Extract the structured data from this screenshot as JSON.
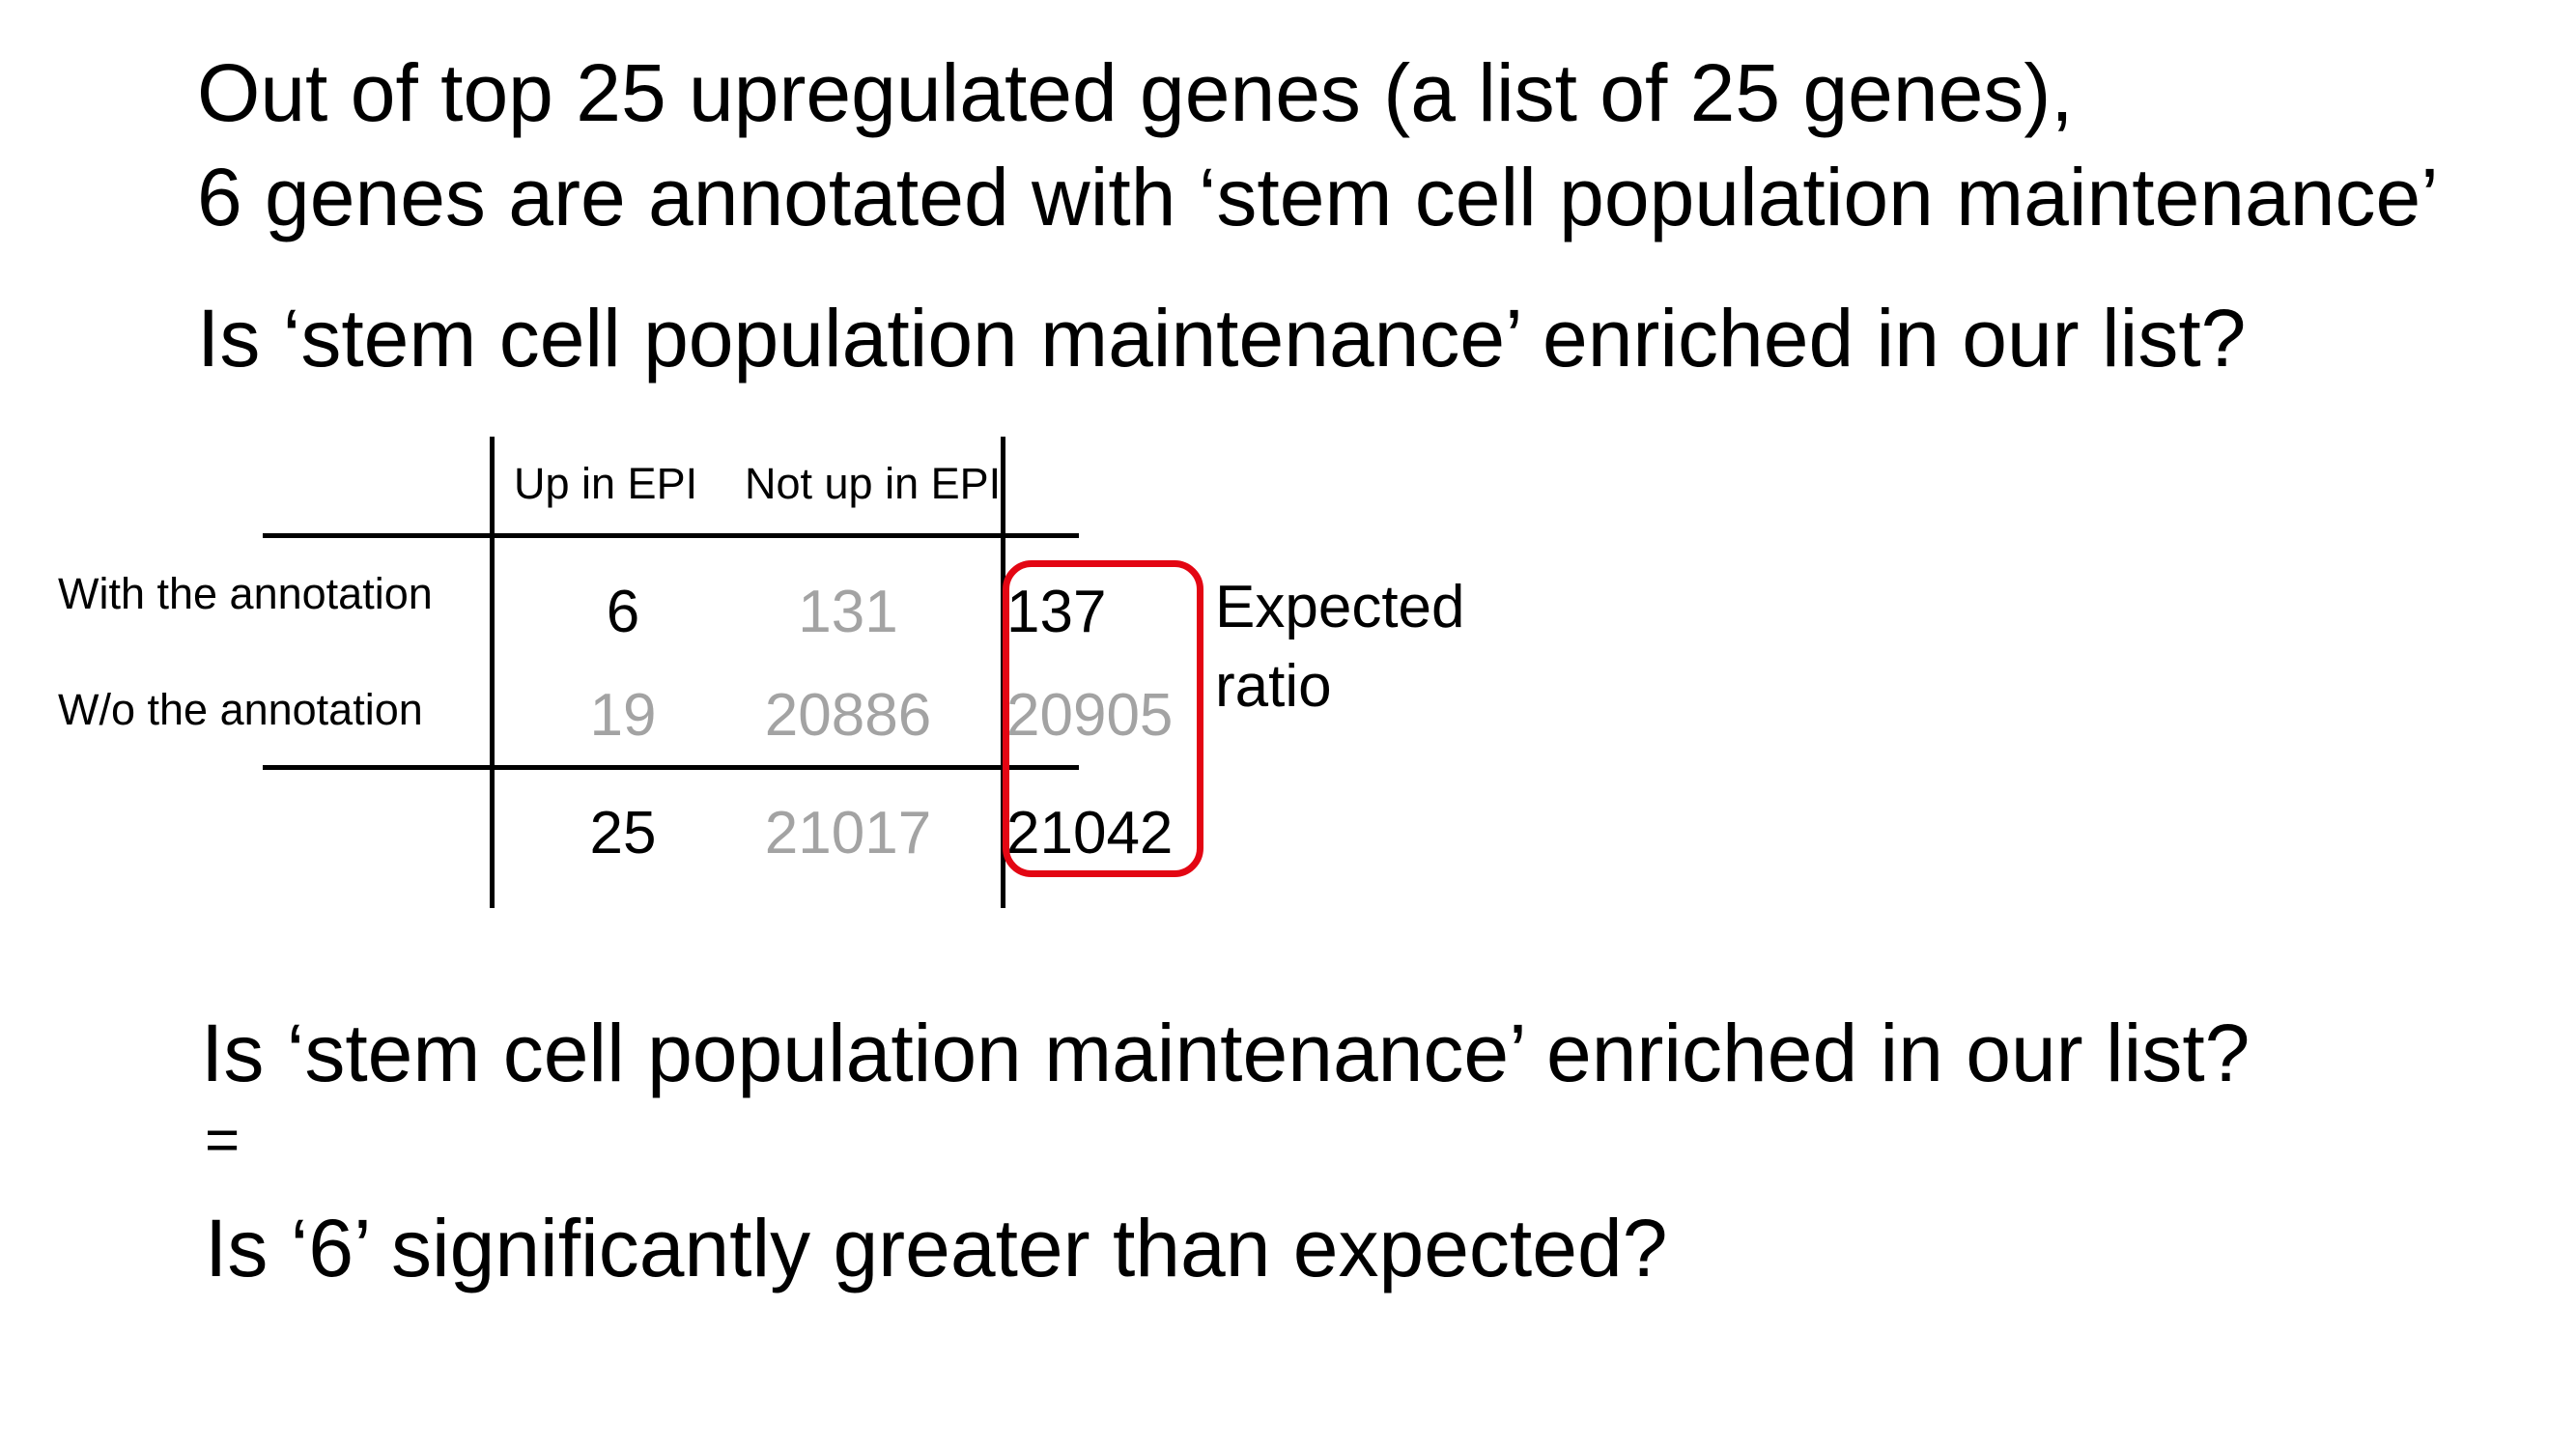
{
  "header": {
    "line1": "Out of top 25 upregulated genes (a list of 25 genes),",
    "line2": "6 genes are annotated with ‘stem cell population maintenance’",
    "question": "Is ‘stem cell population maintenance’ enriched in our list?"
  },
  "table": {
    "col_headers": [
      "Up in EPI",
      "Not up in EPI"
    ],
    "row_labels": [
      "With the annotation",
      "W/o the annotation"
    ],
    "rows": [
      [
        "6",
        "131",
        "137"
      ],
      [
        "19",
        "20886",
        "20905"
      ]
    ],
    "totals": [
      "25",
      "21017",
      "21042"
    ],
    "highlight_color": "#e30613",
    "highlight_label_line1": "Expected",
    "highlight_label_line2": "ratio",
    "grey_color": "#a3a3a3"
  },
  "footer": {
    "question": "Is ‘stem cell population maintenance’ enriched in our list?",
    "equals": "=",
    "restated": "Is ‘6’ significantly greater than expected?"
  }
}
